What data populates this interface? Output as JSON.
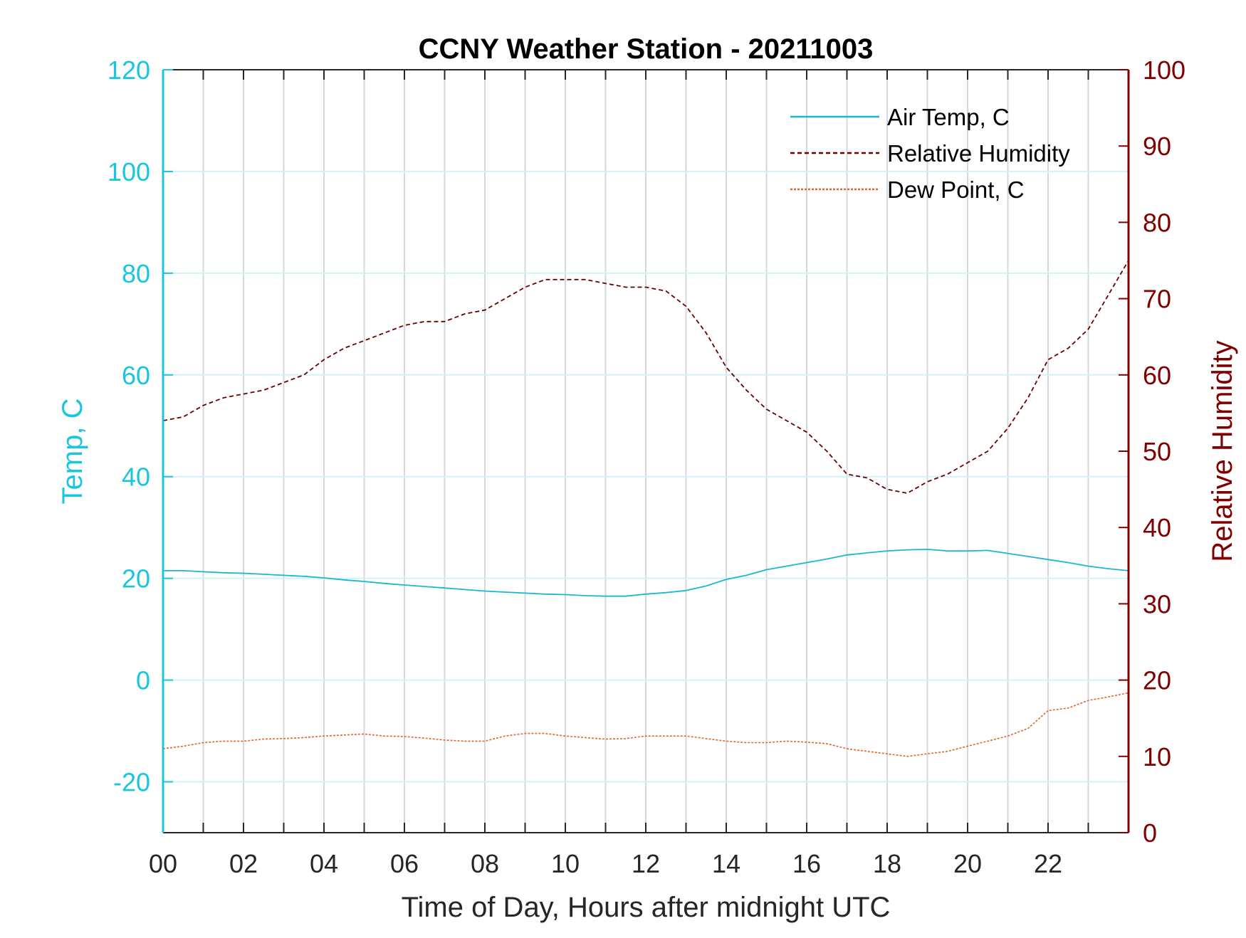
{
  "chart_data": {
    "type": "line",
    "title": "CCNY Weather Station - 20211003",
    "xlabel": "Time of Day, Hours after midnight UTC",
    "ylabel_left": "Temp, C",
    "ylabel_right": "Relative Humidity",
    "xlim": [
      0,
      24
    ],
    "ylim_left": [
      -30,
      120
    ],
    "ylim_right": [
      0,
      100
    ],
    "x_ticks": [
      0,
      2,
      4,
      6,
      8,
      10,
      12,
      14,
      16,
      18,
      20,
      22
    ],
    "x_tick_labels": [
      "00",
      "02",
      "04",
      "06",
      "08",
      "10",
      "12",
      "14",
      "16",
      "18",
      "20",
      "22"
    ],
    "y_left_ticks": [
      -20,
      0,
      20,
      40,
      60,
      80,
      100,
      120
    ],
    "y_left_tick_labels": [
      "-20",
      "0",
      "20",
      "40",
      "60",
      "80",
      "100",
      "120"
    ],
    "y_right_ticks": [
      0,
      10,
      20,
      30,
      40,
      50,
      60,
      70,
      80,
      90,
      100
    ],
    "y_right_tick_labels": [
      "0",
      "10",
      "20",
      "30",
      "40",
      "50",
      "60",
      "70",
      "80",
      "90",
      "100"
    ],
    "grid": true,
    "legend_position": "top-right",
    "colors": {
      "temp_axis": "#1ac6dd",
      "rh_axis": "#800000",
      "air_temp": "#1ab8d0",
      "rh": "#6b0000",
      "dew_point": "#e0672a"
    },
    "series": [
      {
        "name": "Air Temp, C",
        "axis": "left",
        "style": "solid",
        "x": [
          0,
          0.5,
          1,
          1.5,
          2,
          2.5,
          3,
          3.5,
          4,
          4.5,
          5,
          5.5,
          6,
          6.5,
          7,
          7.5,
          8,
          8.5,
          9,
          9.5,
          10,
          10.5,
          11,
          11.5,
          12,
          12.5,
          13,
          13.5,
          14,
          14.5,
          15,
          15.5,
          16,
          16.5,
          17,
          17.5,
          18,
          18.5,
          19,
          19.5,
          20,
          20.5,
          21,
          21.5,
          22,
          22.5,
          23,
          23.5,
          24
        ],
        "values": [
          21.5,
          21.5,
          21.3,
          21.1,
          21.0,
          20.8,
          20.6,
          20.4,
          20.1,
          19.7,
          19.4,
          19.0,
          18.7,
          18.4,
          18.1,
          17.8,
          17.5,
          17.3,
          17.1,
          16.9,
          16.8,
          16.6,
          16.5,
          16.5,
          16.9,
          17.2,
          17.6,
          18.5,
          19.8,
          20.6,
          21.7,
          22.4,
          23.1,
          23.8,
          24.6,
          25.0,
          25.4,
          25.6,
          25.7,
          25.4,
          25.4,
          25.5,
          24.9,
          24.3,
          23.7,
          23.1,
          22.4,
          21.9,
          21.5
        ]
      },
      {
        "name": "Relative Humidity",
        "axis": "right",
        "style": "dashed",
        "x": [
          0,
          0.5,
          1,
          1.5,
          2,
          2.5,
          3,
          3.5,
          4,
          4.5,
          5,
          5.5,
          6,
          6.5,
          7,
          7.5,
          8,
          8.5,
          9,
          9.5,
          10,
          10.5,
          11,
          11.5,
          12,
          12.5,
          13,
          13.5,
          14,
          14.5,
          15,
          15.5,
          16,
          16.5,
          17,
          17.5,
          18,
          18.5,
          19,
          19.5,
          20,
          20.5,
          21,
          21.5,
          22,
          22.5,
          23,
          23.5,
          24
        ],
        "values": [
          54,
          54.5,
          56,
          57,
          57.5,
          58,
          59,
          60,
          62,
          63.5,
          64.5,
          65.5,
          66.5,
          67,
          67,
          68,
          68.5,
          70,
          71.5,
          72.5,
          72.5,
          72.5,
          72,
          71.5,
          71.5,
          71,
          69,
          65.5,
          61,
          58,
          55.5,
          54,
          52.5,
          50,
          47,
          46.5,
          45,
          44.5,
          46,
          47,
          48.5,
          50,
          53,
          57,
          62,
          63.5,
          66,
          70.5,
          75
        ]
      },
      {
        "name": "Dew Point, C",
        "axis": "left",
        "style": "dotted",
        "x": [
          0,
          0.5,
          1,
          1.5,
          2,
          2.5,
          3,
          3.5,
          4,
          4.5,
          5,
          5.5,
          6,
          6.5,
          7,
          7.5,
          8,
          8.5,
          9,
          9.5,
          10,
          10.5,
          11,
          11.5,
          12,
          12.5,
          13,
          13.5,
          14,
          14.5,
          15,
          15.5,
          16,
          16.5,
          17,
          17.5,
          18,
          18.5,
          19,
          19.5,
          20,
          20.5,
          21,
          21.5,
          22,
          22.5,
          23,
          23.5,
          24
        ],
        "values": [
          -13.5,
          -13,
          -12.3,
          -12,
          -12,
          -11.6,
          -11.5,
          -11.3,
          -11,
          -10.8,
          -10.6,
          -11,
          -11.1,
          -11.4,
          -11.8,
          -12,
          -12,
          -11,
          -10.5,
          -10.5,
          -11,
          -11.3,
          -11.6,
          -11.5,
          -11,
          -11,
          -11,
          -11.5,
          -12,
          -12.3,
          -12.3,
          -12,
          -12.2,
          -12.5,
          -13.5,
          -14,
          -14.5,
          -15,
          -14.5,
          -14,
          -13,
          -12,
          -11,
          -9.5,
          -6,
          -5.5,
          -4,
          -3.3,
          -2.5
        ]
      }
    ]
  }
}
